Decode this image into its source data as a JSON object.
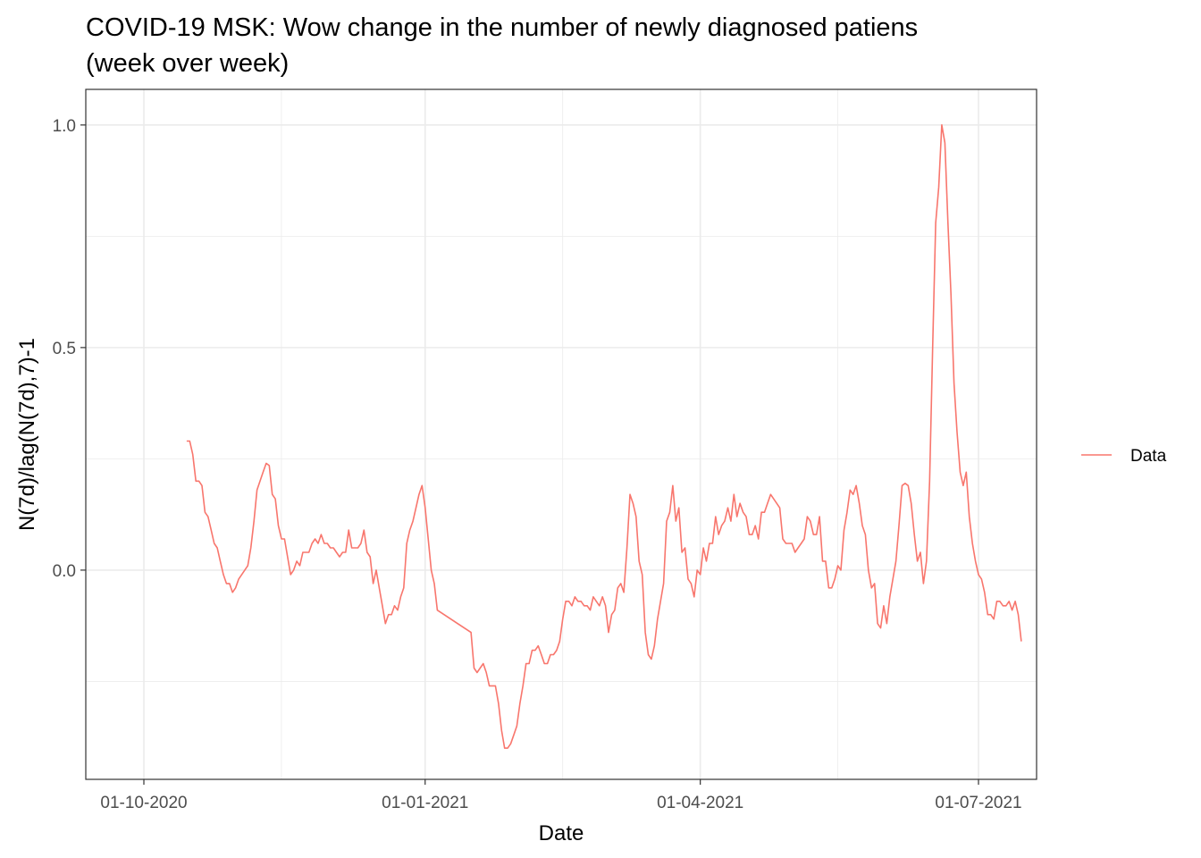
{
  "chart_data": {
    "type": "line",
    "title": [
      "COVID-19 MSK: Wow change in the number of newly diagnosed patiens",
      "(week over week)"
    ],
    "xlabel": "Date",
    "ylabel": "N(7d)/lag(N(7d),7)-1",
    "xlim": [
      "2020-09-12",
      "2021-07-20"
    ],
    "ylim": [
      -0.47,
      1.08
    ],
    "x_ticks": [
      {
        "date": "2020-10-01",
        "label": "01-10-2020"
      },
      {
        "date": "2021-01-01",
        "label": "01-01-2021"
      },
      {
        "date": "2021-04-01",
        "label": "01-04-2021"
      },
      {
        "date": "2021-07-01",
        "label": "01-07-2021"
      }
    ],
    "x_minor": [
      "2020-11-15",
      "2021-02-15",
      "2021-05-16"
    ],
    "y_ticks": [
      {
        "value": 0.0,
        "label": "0.0"
      },
      {
        "value": 0.5,
        "label": "0.5"
      },
      {
        "value": 1.0,
        "label": "1.0"
      }
    ],
    "y_minor": [
      -0.25,
      0.25,
      0.75
    ],
    "grid": true,
    "legend_position": "right",
    "colors": {
      "series": "#f8766d",
      "grid": "#ebebeb",
      "panel_border": "#333333"
    },
    "series": [
      {
        "name": "Data",
        "points": [
          [
            "2020-10-15",
            0.29
          ],
          [
            "2020-10-16",
            0.29
          ],
          [
            "2020-10-17",
            0.26
          ],
          [
            "2020-10-18",
            0.2
          ],
          [
            "2020-10-19",
            0.2
          ],
          [
            "2020-10-20",
            0.19
          ],
          [
            "2020-10-21",
            0.13
          ],
          [
            "2020-10-22",
            0.12
          ],
          [
            "2020-10-23",
            0.09
          ],
          [
            "2020-10-24",
            0.06
          ],
          [
            "2020-10-25",
            0.05
          ],
          [
            "2020-10-26",
            0.02
          ],
          [
            "2020-10-27",
            -0.01
          ],
          [
            "2020-10-28",
            -0.03
          ],
          [
            "2020-10-29",
            -0.03
          ],
          [
            "2020-10-30",
            -0.05
          ],
          [
            "2020-10-31",
            -0.04
          ],
          [
            "2020-11-01",
            -0.02
          ],
          [
            "2020-11-03",
            0.0
          ],
          [
            "2020-11-04",
            0.01
          ],
          [
            "2020-11-05",
            0.05
          ],
          [
            "2020-11-06",
            0.11
          ],
          [
            "2020-11-07",
            0.18
          ],
          [
            "2020-11-08",
            0.2
          ],
          [
            "2020-11-09",
            0.22
          ],
          [
            "2020-11-10",
            0.24
          ],
          [
            "2020-11-11",
            0.235
          ],
          [
            "2020-11-12",
            0.17
          ],
          [
            "2020-11-13",
            0.16
          ],
          [
            "2020-11-14",
            0.1
          ],
          [
            "2020-11-15",
            0.07
          ],
          [
            "2020-11-16",
            0.07
          ],
          [
            "2020-11-17",
            0.03
          ],
          [
            "2020-11-18",
            -0.01
          ],
          [
            "2020-11-19",
            0.0
          ],
          [
            "2020-11-20",
            0.02
          ],
          [
            "2020-11-21",
            0.01
          ],
          [
            "2020-11-22",
            0.04
          ],
          [
            "2020-11-23",
            0.04
          ],
          [
            "2020-11-24",
            0.04
          ],
          [
            "2020-11-25",
            0.06
          ],
          [
            "2020-11-26",
            0.07
          ],
          [
            "2020-11-27",
            0.06
          ],
          [
            "2020-11-28",
            0.08
          ],
          [
            "2020-11-29",
            0.06
          ],
          [
            "2020-11-30",
            0.06
          ],
          [
            "2020-12-01",
            0.05
          ],
          [
            "2020-12-02",
            0.05
          ],
          [
            "2020-12-03",
            0.04
          ],
          [
            "2020-12-04",
            0.03
          ],
          [
            "2020-12-05",
            0.04
          ],
          [
            "2020-12-06",
            0.04
          ],
          [
            "2020-12-07",
            0.09
          ],
          [
            "2020-12-08",
            0.05
          ],
          [
            "2020-12-09",
            0.05
          ],
          [
            "2020-12-10",
            0.05
          ],
          [
            "2020-12-11",
            0.06
          ],
          [
            "2020-12-12",
            0.09
          ],
          [
            "2020-12-13",
            0.04
          ],
          [
            "2020-12-14",
            0.03
          ],
          [
            "2020-12-15",
            -0.03
          ],
          [
            "2020-12-16",
            0.0
          ],
          [
            "2020-12-17",
            -0.04
          ],
          [
            "2020-12-18",
            -0.08
          ],
          [
            "2020-12-19",
            -0.12
          ],
          [
            "2020-12-20",
            -0.1
          ],
          [
            "2020-12-21",
            -0.1
          ],
          [
            "2020-12-22",
            -0.08
          ],
          [
            "2020-12-23",
            -0.09
          ],
          [
            "2020-12-24",
            -0.06
          ],
          [
            "2020-12-25",
            -0.04
          ],
          [
            "2020-12-26",
            0.06
          ],
          [
            "2020-12-27",
            0.09
          ],
          [
            "2020-12-28",
            0.11
          ],
          [
            "2020-12-29",
            0.14
          ],
          [
            "2020-12-30",
            0.17
          ],
          [
            "2020-12-31",
            0.19
          ],
          [
            "2021-01-01",
            0.14
          ],
          [
            "2021-01-02",
            0.07
          ],
          [
            "2021-01-03",
            0.0
          ],
          [
            "2021-01-04",
            -0.03
          ],
          [
            "2021-01-05",
            -0.09
          ],
          [
            "2021-01-16",
            -0.14
          ],
          [
            "2021-01-17",
            -0.22
          ],
          [
            "2021-01-18",
            -0.23
          ],
          [
            "2021-01-19",
            -0.22
          ],
          [
            "2021-01-20",
            -0.21
          ],
          [
            "2021-01-21",
            -0.23
          ],
          [
            "2021-01-22",
            -0.26
          ],
          [
            "2021-01-23",
            -0.26
          ],
          [
            "2021-01-24",
            -0.26
          ],
          [
            "2021-01-25",
            -0.3
          ],
          [
            "2021-01-26",
            -0.36
          ],
          [
            "2021-01-27",
            -0.4
          ],
          [
            "2021-01-28",
            -0.4
          ],
          [
            "2021-01-29",
            -0.39
          ],
          [
            "2021-01-30",
            -0.37
          ],
          [
            "2021-01-31",
            -0.35
          ],
          [
            "2021-02-01",
            -0.3
          ],
          [
            "2021-02-02",
            -0.26
          ],
          [
            "2021-02-03",
            -0.21
          ],
          [
            "2021-02-04",
            -0.21
          ],
          [
            "2021-02-05",
            -0.18
          ],
          [
            "2021-02-06",
            -0.18
          ],
          [
            "2021-02-07",
            -0.17
          ],
          [
            "2021-02-08",
            -0.19
          ],
          [
            "2021-02-09",
            -0.21
          ],
          [
            "2021-02-10",
            -0.21
          ],
          [
            "2021-02-11",
            -0.19
          ],
          [
            "2021-02-12",
            -0.19
          ],
          [
            "2021-02-13",
            -0.18
          ],
          [
            "2021-02-14",
            -0.16
          ],
          [
            "2021-02-15",
            -0.11
          ],
          [
            "2021-02-16",
            -0.07
          ],
          [
            "2021-02-17",
            -0.07
          ],
          [
            "2021-02-18",
            -0.08
          ],
          [
            "2021-02-19",
            -0.06
          ],
          [
            "2021-02-20",
            -0.07
          ],
          [
            "2021-02-21",
            -0.07
          ],
          [
            "2021-02-22",
            -0.08
          ],
          [
            "2021-02-23",
            -0.08
          ],
          [
            "2021-02-24",
            -0.09
          ],
          [
            "2021-02-25",
            -0.06
          ],
          [
            "2021-02-26",
            -0.07
          ],
          [
            "2021-02-27",
            -0.08
          ],
          [
            "2021-02-28",
            -0.06
          ],
          [
            "2021-03-01",
            -0.08
          ],
          [
            "2021-03-02",
            -0.14
          ],
          [
            "2021-03-03",
            -0.1
          ],
          [
            "2021-03-04",
            -0.09
          ],
          [
            "2021-03-05",
            -0.04
          ],
          [
            "2021-03-06",
            -0.03
          ],
          [
            "2021-03-07",
            -0.05
          ],
          [
            "2021-03-08",
            0.05
          ],
          [
            "2021-03-09",
            0.17
          ],
          [
            "2021-03-10",
            0.15
          ],
          [
            "2021-03-11",
            0.12
          ],
          [
            "2021-03-12",
            0.02
          ],
          [
            "2021-03-13",
            -0.01
          ],
          [
            "2021-03-14",
            -0.14
          ],
          [
            "2021-03-15",
            -0.19
          ],
          [
            "2021-03-16",
            -0.2
          ],
          [
            "2021-03-17",
            -0.17
          ],
          [
            "2021-03-18",
            -0.11
          ],
          [
            "2021-03-19",
            -0.07
          ],
          [
            "2021-03-20",
            -0.03
          ],
          [
            "2021-03-21",
            0.11
          ],
          [
            "2021-03-22",
            0.13
          ],
          [
            "2021-03-23",
            0.19
          ],
          [
            "2021-03-24",
            0.11
          ],
          [
            "2021-03-25",
            0.14
          ],
          [
            "2021-03-26",
            0.04
          ],
          [
            "2021-03-27",
            0.05
          ],
          [
            "2021-03-28",
            -0.02
          ],
          [
            "2021-03-29",
            -0.03
          ],
          [
            "2021-03-30",
            -0.06
          ],
          [
            "2021-03-31",
            0.0
          ],
          [
            "2021-04-01",
            -0.01
          ],
          [
            "2021-04-02",
            0.05
          ],
          [
            "2021-04-03",
            0.02
          ],
          [
            "2021-04-04",
            0.06
          ],
          [
            "2021-04-05",
            0.06
          ],
          [
            "2021-04-06",
            0.12
          ],
          [
            "2021-04-07",
            0.08
          ],
          [
            "2021-04-08",
            0.1
          ],
          [
            "2021-04-09",
            0.11
          ],
          [
            "2021-04-10",
            0.14
          ],
          [
            "2021-04-11",
            0.11
          ],
          [
            "2021-04-12",
            0.17
          ],
          [
            "2021-04-13",
            0.12
          ],
          [
            "2021-04-14",
            0.15
          ],
          [
            "2021-04-15",
            0.13
          ],
          [
            "2021-04-16",
            0.12
          ],
          [
            "2021-04-17",
            0.08
          ],
          [
            "2021-04-18",
            0.08
          ],
          [
            "2021-04-19",
            0.1
          ],
          [
            "2021-04-20",
            0.07
          ],
          [
            "2021-04-21",
            0.13
          ],
          [
            "2021-04-22",
            0.13
          ],
          [
            "2021-04-23",
            0.15
          ],
          [
            "2021-04-24",
            0.17
          ],
          [
            "2021-04-25",
            0.16
          ],
          [
            "2021-04-26",
            0.15
          ],
          [
            "2021-04-27",
            0.14
          ],
          [
            "2021-04-28",
            0.07
          ],
          [
            "2021-04-29",
            0.06
          ],
          [
            "2021-04-30",
            0.06
          ],
          [
            "2021-05-01",
            0.06
          ],
          [
            "2021-05-02",
            0.04
          ],
          [
            "2021-05-03",
            0.05
          ],
          [
            "2021-05-04",
            0.06
          ],
          [
            "2021-05-05",
            0.07
          ],
          [
            "2021-05-06",
            0.12
          ],
          [
            "2021-05-07",
            0.11
          ],
          [
            "2021-05-08",
            0.08
          ],
          [
            "2021-05-09",
            0.08
          ],
          [
            "2021-05-10",
            0.12
          ],
          [
            "2021-05-11",
            0.02
          ],
          [
            "2021-05-12",
            0.02
          ],
          [
            "2021-05-13",
            -0.04
          ],
          [
            "2021-05-14",
            -0.04
          ],
          [
            "2021-05-15",
            -0.02
          ],
          [
            "2021-05-16",
            0.01
          ],
          [
            "2021-05-17",
            0.0
          ],
          [
            "2021-05-18",
            0.09
          ],
          [
            "2021-05-19",
            0.13
          ],
          [
            "2021-05-20",
            0.18
          ],
          [
            "2021-05-21",
            0.17
          ],
          [
            "2021-05-22",
            0.19
          ],
          [
            "2021-05-23",
            0.15
          ],
          [
            "2021-05-24",
            0.1
          ],
          [
            "2021-05-25",
            0.08
          ],
          [
            "2021-05-26",
            0.0
          ],
          [
            "2021-05-27",
            -0.04
          ],
          [
            "2021-05-28",
            -0.03
          ],
          [
            "2021-05-29",
            -0.12
          ],
          [
            "2021-05-30",
            -0.13
          ],
          [
            "2021-05-31",
            -0.08
          ],
          [
            "2021-06-01",
            -0.12
          ],
          [
            "2021-06-02",
            -0.06
          ],
          [
            "2021-06-03",
            -0.02
          ],
          [
            "2021-06-04",
            0.02
          ],
          [
            "2021-06-05",
            0.1
          ],
          [
            "2021-06-06",
            0.19
          ],
          [
            "2021-06-07",
            0.195
          ],
          [
            "2021-06-08",
            0.19
          ],
          [
            "2021-06-09",
            0.15
          ],
          [
            "2021-06-10",
            0.08
          ],
          [
            "2021-06-11",
            0.02
          ],
          [
            "2021-06-12",
            0.04
          ],
          [
            "2021-06-13",
            -0.03
          ],
          [
            "2021-06-14",
            0.02
          ],
          [
            "2021-06-15",
            0.2
          ],
          [
            "2021-06-16",
            0.5
          ],
          [
            "2021-06-17",
            0.78
          ],
          [
            "2021-06-18",
            0.86
          ],
          [
            "2021-06-19",
            1.0
          ],
          [
            "2021-06-20",
            0.96
          ],
          [
            "2021-06-21",
            0.78
          ],
          [
            "2021-06-22",
            0.62
          ],
          [
            "2021-06-23",
            0.42
          ],
          [
            "2021-06-24",
            0.31
          ],
          [
            "2021-06-25",
            0.22
          ],
          [
            "2021-06-26",
            0.19
          ],
          [
            "2021-06-27",
            0.22
          ],
          [
            "2021-06-28",
            0.12
          ],
          [
            "2021-06-29",
            0.06
          ],
          [
            "2021-06-30",
            0.02
          ],
          [
            "2021-07-01",
            -0.01
          ],
          [
            "2021-07-02",
            -0.02
          ],
          [
            "2021-07-03",
            -0.05
          ],
          [
            "2021-07-04",
            -0.1
          ],
          [
            "2021-07-05",
            -0.1
          ],
          [
            "2021-07-06",
            -0.11
          ],
          [
            "2021-07-07",
            -0.07
          ],
          [
            "2021-07-08",
            -0.07
          ],
          [
            "2021-07-09",
            -0.08
          ],
          [
            "2021-07-10",
            -0.08
          ],
          [
            "2021-07-11",
            -0.07
          ],
          [
            "2021-07-12",
            -0.09
          ],
          [
            "2021-07-13",
            -0.07
          ],
          [
            "2021-07-14",
            -0.1
          ],
          [
            "2021-07-15",
            -0.16
          ]
        ]
      }
    ]
  }
}
